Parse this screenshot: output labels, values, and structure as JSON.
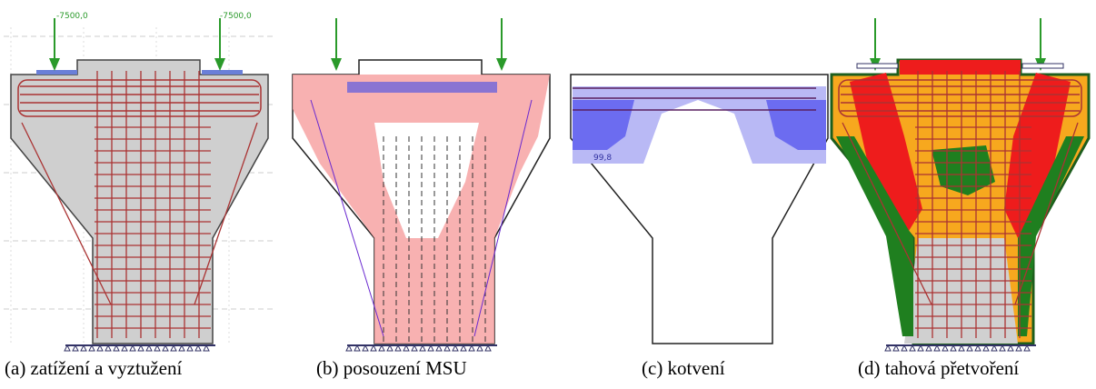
{
  "panels": [
    {
      "caption": "(a)  zatížení a vyztužení",
      "load_labels": [
        "-7500,0",
        "-7500,0"
      ]
    },
    {
      "caption": "(b)  posouzení MSU"
    },
    {
      "caption": "(c)  kotvení",
      "value_label": "99,8"
    },
    {
      "caption": "(d)  tahová přetvoření"
    }
  ]
}
